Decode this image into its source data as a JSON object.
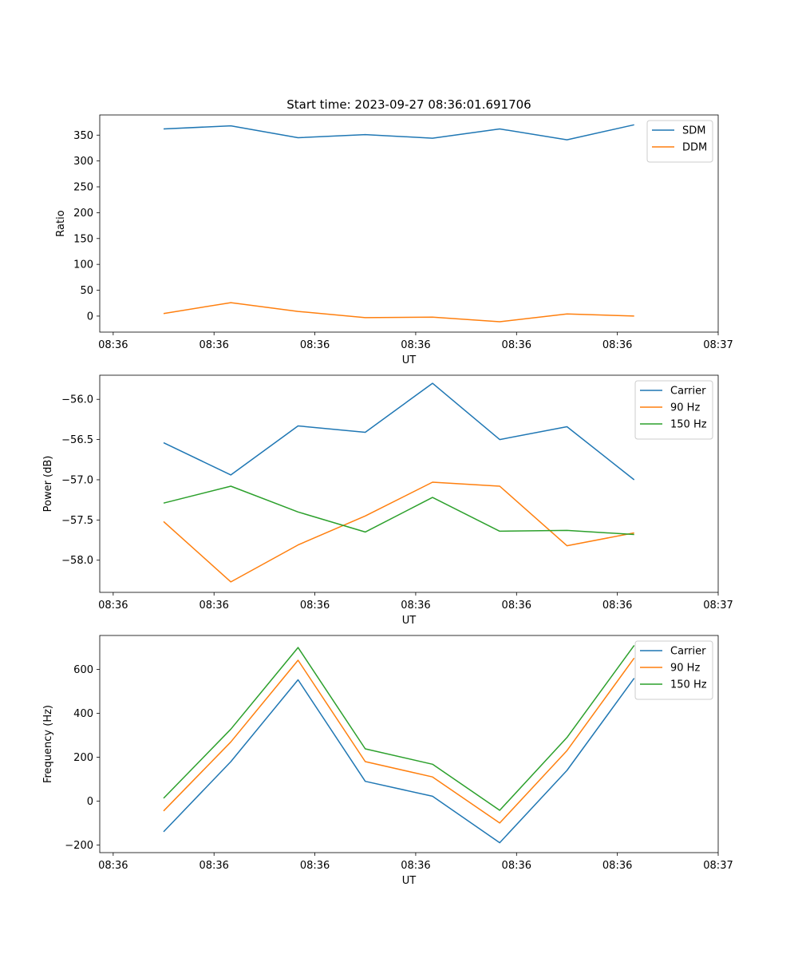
{
  "figure_title": "Start time: 2023-09-27 08:36:01.691706",
  "chart_data": [
    {
      "type": "line",
      "ylabel": "Ratio",
      "xlabel": "UT",
      "ylim": [
        -31,
        389
      ],
      "yticks": [
        0,
        50,
        100,
        150,
        200,
        250,
        300,
        350
      ],
      "ytick_labels": [
        "0",
        "50",
        "100",
        "150",
        "200",
        "250",
        "300",
        "350"
      ],
      "xlim": [
        -0.2,
        9.0
      ],
      "x": [
        0.75,
        1.75,
        2.75,
        3.75,
        4.75,
        5.75,
        6.75,
        7.75
      ],
      "xtick_labels": [
        "08:36",
        "08:36",
        "08:36",
        "08:36",
        "08:36",
        "08:36",
        "08:37"
      ],
      "legend": "top-right",
      "series": [
        {
          "name": "SDM",
          "color": "#1f77b4",
          "values": [
            362,
            368,
            345,
            351,
            344,
            362,
            341,
            370
          ]
        },
        {
          "name": "DDM",
          "color": "#ff7f0e",
          "values": [
            5,
            26,
            9,
            -3,
            -2,
            -11,
            4,
            0
          ]
        }
      ]
    },
    {
      "type": "line",
      "ylabel": "Power (dB)",
      "xlabel": "UT",
      "ylim": [
        -58.4,
        -55.7
      ],
      "yticks": [
        -58.0,
        -57.5,
        -57.0,
        -56.5,
        -56.0
      ],
      "ytick_labels": [
        "−58.0",
        "−57.5",
        "−57.0",
        "−56.5",
        "−56.0"
      ],
      "xlim": [
        -0.2,
        9.0
      ],
      "x": [
        0.75,
        1.75,
        2.75,
        3.75,
        4.75,
        5.75,
        6.75,
        7.75
      ],
      "xtick_labels": [
        "08:36",
        "08:36",
        "08:36",
        "08:36",
        "08:36",
        "08:36",
        "08:37"
      ],
      "legend": "top-right",
      "series": [
        {
          "name": "Carrier",
          "color": "#1f77b4",
          "values": [
            -56.54,
            -56.94,
            -56.33,
            -56.41,
            -55.8,
            -56.5,
            -56.34,
            -57.0
          ]
        },
        {
          "name": "90 Hz",
          "color": "#ff7f0e",
          "values": [
            -57.52,
            -58.27,
            -57.81,
            -57.45,
            -57.03,
            -57.08,
            -57.82,
            -57.66
          ]
        },
        {
          "name": "150 Hz",
          "color": "#2ca02c",
          "values": [
            -57.29,
            -57.08,
            -57.4,
            -57.65,
            -57.22,
            -57.64,
            -57.63,
            -57.68
          ]
        }
      ]
    },
    {
      "type": "line",
      "ylabel": "Frequency (Hz)",
      "xlabel": "UT",
      "ylim": [
        -235,
        755
      ],
      "yticks": [
        -200,
        0,
        200,
        400,
        600
      ],
      "ytick_labels": [
        "−200",
        "0",
        "200",
        "400",
        "600"
      ],
      "xlim": [
        -0.2,
        9.0
      ],
      "x": [
        0.75,
        1.75,
        2.75,
        3.75,
        4.75,
        5.75,
        6.75,
        7.75
      ],
      "xtick_labels": [
        "08:36",
        "08:36",
        "08:36",
        "08:36",
        "08:36",
        "08:36",
        "08:37"
      ],
      "legend": "top-right",
      "series": [
        {
          "name": "Carrier",
          "color": "#1f77b4",
          "values": [
            -140,
            180,
            553,
            90,
            22,
            -190,
            140,
            560
          ]
        },
        {
          "name": "90 Hz",
          "color": "#ff7f0e",
          "values": [
            -45,
            270,
            642,
            180,
            110,
            -100,
            230,
            652
          ]
        },
        {
          "name": "150 Hz",
          "color": "#2ca02c",
          "values": [
            13,
            328,
            700,
            238,
            168,
            -42,
            290,
            710
          ]
        }
      ]
    }
  ]
}
